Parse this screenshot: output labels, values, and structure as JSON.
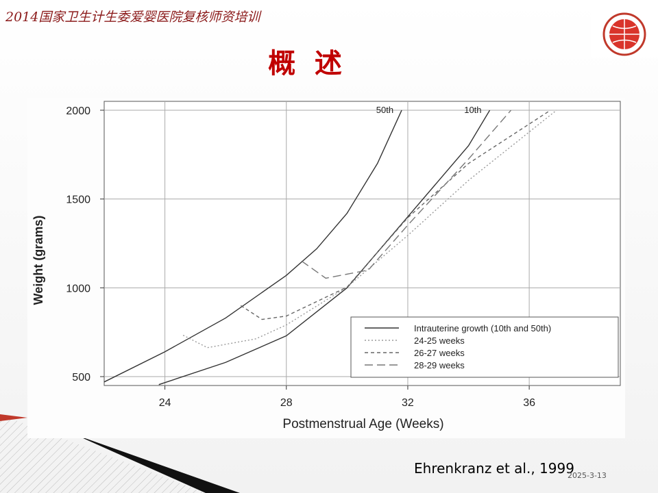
{
  "header": {
    "course": "2014国家卫生计生委爱婴医院复核师资培训",
    "title": "概  述"
  },
  "citation": "Ehrenkranz et al., 1999",
  "date": "2025-3-13",
  "chart_data": {
    "type": "line",
    "x_label": "Postmenstrual Age (Weeks)",
    "y_label": "Weight (grams)",
    "xlim": [
      22,
      39
    ],
    "ylim": [
      450,
      2050
    ],
    "xticks": [
      24,
      28,
      32,
      36
    ],
    "yticks": [
      500,
      1000,
      1500,
      2000
    ],
    "grid": true,
    "legend": "lower right",
    "series": [
      {
        "name": "Intrauterine growth (10th and 50th)",
        "color": "#333333",
        "dash": "solid",
        "curves": [
          {
            "label": "50th",
            "x": [
              22,
              24,
              26,
              28,
              29,
              30,
              31,
              31.8
            ],
            "values": [
              470,
              640,
              830,
              1070,
              1220,
              1420,
              1700,
              2000
            ]
          },
          {
            "label": "10th",
            "x": [
              23.8,
              26,
              28,
              30,
              32,
              34,
              34.7
            ],
            "values": [
              455,
              580,
              730,
              1000,
              1400,
              1800,
              2000
            ]
          }
        ]
      },
      {
        "name": "24-25 weeks",
        "color": "#999999",
        "dash": "dotted",
        "curves": [
          {
            "x": [
              24.6,
              25.4,
              27,
              28,
              30,
              32,
              34,
              36.9
            ],
            "values": [
              733,
              663,
              713,
              791,
              1004,
              1295,
              1605,
              2000
            ]
          }
        ]
      },
      {
        "name": "26-27 weeks",
        "color": "#666666",
        "dash": "short-dash",
        "curves": [
          {
            "x": [
              26.5,
              27.2,
              28,
              30,
              32,
              34,
              36.7
            ],
            "values": [
              900,
              822,
              841,
              1004,
              1395,
              1700,
              2000
            ]
          }
        ]
      },
      {
        "name": "28-29 weeks",
        "color": "#777777",
        "dash": "long-dash",
        "curves": [
          {
            "x": [
              28.5,
              29.3,
              30.7,
              32,
              34,
              35.4
            ],
            "values": [
              1151,
              1054,
              1100,
              1353,
              1725,
              2000
            ]
          }
        ]
      }
    ]
  }
}
